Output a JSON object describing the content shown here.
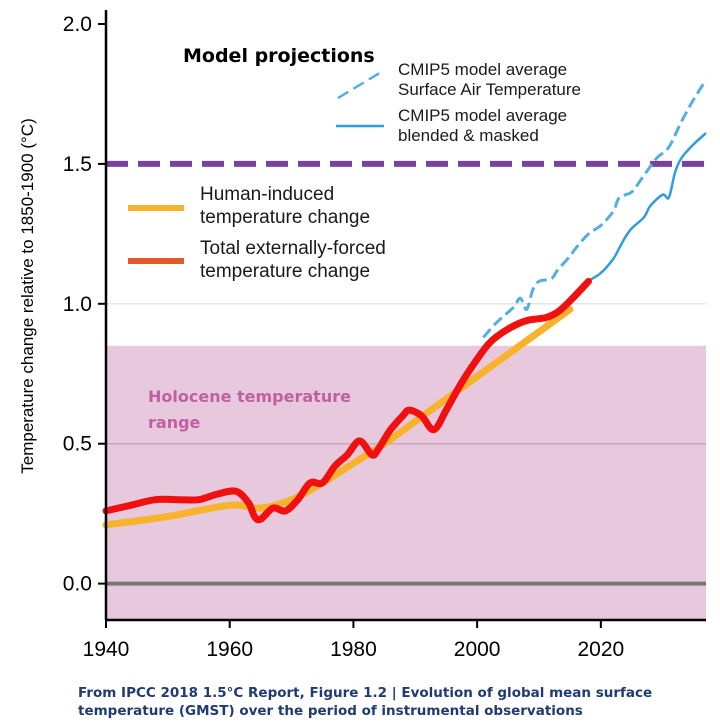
{
  "chart_data": {
    "type": "line",
    "xlabel": "",
    "ylabel": "Temperature change relative to 1850-1900 (°C)",
    "xlim": [
      1940,
      2037
    ],
    "ylim": [
      -0.13,
      2.05
    ],
    "x_ticks": [
      "1940",
      "1960",
      "1980",
      "2000",
      "2020"
    ],
    "y_ticks": [
      "0.0",
      "0.5",
      "1.0",
      "1.5",
      "2.0"
    ],
    "annotations": {
      "projections_title": "Model projections",
      "holocene_label_line1": "Holocene temperature",
      "holocene_label_line2": "range"
    },
    "legend": {
      "placement": "top-right and middle-left",
      "cmip_surface_line1": "CMIP5 model average",
      "cmip_surface_line2": "Surface Air Temperature",
      "cmip_blended_line1": "CMIP5 model average",
      "cmip_blended_line2": "blended & masked",
      "human_line1": "Human-induced",
      "human_line2": "temperature change",
      "total_line1": "Total externally-forced",
      "total_line2": "temperature change"
    },
    "reference_lines": [
      {
        "y": 1.5,
        "style": "dashed",
        "color": "#7b3fa0"
      },
      {
        "y": 0.0,
        "style": "solid",
        "color": "#777777"
      }
    ],
    "holocene_band": {
      "y_min": -0.13,
      "y_max": 0.85,
      "color": "#e8c8dd"
    },
    "series": [
      {
        "key": "human",
        "color": "#f7b32b",
        "points": [
          [
            1940,
            0.21
          ],
          [
            1950,
            0.24
          ],
          [
            1960,
            0.28
          ],
          [
            1965,
            0.27
          ],
          [
            1970,
            0.3
          ],
          [
            1975,
            0.36
          ],
          [
            1980,
            0.43
          ],
          [
            1985,
            0.5
          ],
          [
            1990,
            0.58
          ],
          [
            1995,
            0.66
          ],
          [
            2000,
            0.74
          ],
          [
            2005,
            0.82
          ],
          [
            2010,
            0.9
          ],
          [
            2015,
            0.98
          ]
        ]
      },
      {
        "key": "total",
        "color": "#f01010",
        "points": [
          [
            1940,
            0.26
          ],
          [
            1944,
            0.28
          ],
          [
            1948,
            0.3
          ],
          [
            1952,
            0.3
          ],
          [
            1955,
            0.3
          ],
          [
            1958,
            0.32
          ],
          [
            1961,
            0.33
          ],
          [
            1963,
            0.29
          ],
          [
            1964,
            0.24
          ],
          [
            1965,
            0.23
          ],
          [
            1967,
            0.27
          ],
          [
            1969,
            0.26
          ],
          [
            1971,
            0.3
          ],
          [
            1973,
            0.36
          ],
          [
            1975,
            0.36
          ],
          [
            1977,
            0.42
          ],
          [
            1979,
            0.46
          ],
          [
            1981,
            0.51
          ],
          [
            1983,
            0.46
          ],
          [
            1984,
            0.48
          ],
          [
            1986,
            0.55
          ],
          [
            1988,
            0.6
          ],
          [
            1989,
            0.62
          ],
          [
            1991,
            0.6
          ],
          [
            1993,
            0.55
          ],
          [
            1995,
            0.62
          ],
          [
            1997,
            0.7
          ],
          [
            1999,
            0.77
          ],
          [
            2002,
            0.86
          ],
          [
            2005,
            0.91
          ],
          [
            2008,
            0.94
          ],
          [
            2011,
            0.95
          ],
          [
            2013,
            0.97
          ],
          [
            2015,
            1.01
          ],
          [
            2018,
            1.08
          ]
        ]
      },
      {
        "key": "cmip_surface",
        "color": "#55aee0",
        "dashed": true,
        "points": [
          [
            2001,
            0.88
          ],
          [
            2003,
            0.93
          ],
          [
            2005,
            0.97
          ],
          [
            2006,
            0.99
          ],
          [
            2007,
            1.02
          ],
          [
            2008,
            0.98
          ],
          [
            2009,
            1.05
          ],
          [
            2010,
            1.08
          ],
          [
            2012,
            1.09
          ],
          [
            2013,
            1.12
          ],
          [
            2015,
            1.17
          ],
          [
            2016,
            1.2
          ],
          [
            2018,
            1.25
          ],
          [
            2020,
            1.28
          ],
          [
            2022,
            1.33
          ],
          [
            2023,
            1.38
          ],
          [
            2025,
            1.4
          ],
          [
            2027,
            1.46
          ],
          [
            2029,
            1.52
          ],
          [
            2031,
            1.56
          ],
          [
            2033,
            1.65
          ],
          [
            2035,
            1.73
          ],
          [
            2037,
            1.8
          ]
        ]
      },
      {
        "key": "cmip_blended",
        "color": "#2f9de0",
        "points": [
          [
            2016,
            1.03
          ],
          [
            2018,
            1.08
          ],
          [
            2020,
            1.11
          ],
          [
            2022,
            1.16
          ],
          [
            2023,
            1.2
          ],
          [
            2024,
            1.24
          ],
          [
            2025,
            1.27
          ],
          [
            2027,
            1.31
          ],
          [
            2028,
            1.35
          ],
          [
            2030,
            1.39
          ],
          [
            2031,
            1.38
          ],
          [
            2032,
            1.47
          ],
          [
            2033,
            1.52
          ],
          [
            2035,
            1.57
          ],
          [
            2037,
            1.61
          ]
        ]
      }
    ]
  },
  "caption": {
    "line1": "From IPCC 2018 1.5°C Report, Figure 1.2 | Evolution of global mean surface",
    "line2": "temperature (GMST) over the period of instrumental observations"
  }
}
